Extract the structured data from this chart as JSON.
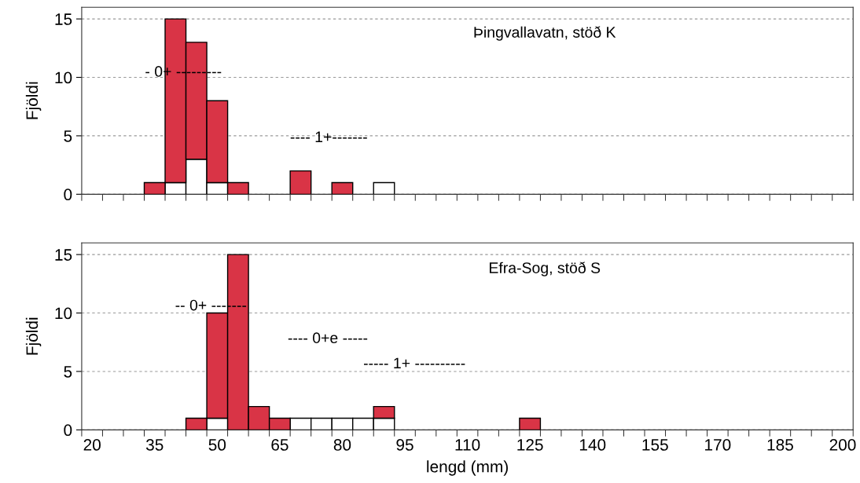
{
  "chart_data": [
    {
      "type": "bar",
      "title": "Þingvallavatn, stöð K",
      "ylabel": "Fjöldi",
      "stacked": true,
      "grid": "y",
      "legend": false,
      "tick_labels": "y",
      "categories": [
        "20",
        null,
        null,
        "35",
        null,
        null,
        "50",
        null,
        null,
        "65",
        null,
        null,
        "80",
        null,
        null,
        "95",
        null,
        null,
        "110",
        null,
        null,
        "125",
        null,
        null,
        "140",
        null,
        null,
        "155",
        null,
        null,
        "170",
        null,
        null,
        "185",
        null,
        null,
        "200"
      ],
      "ylim": [
        0,
        16
      ],
      "yticks": [
        0,
        5,
        10,
        15
      ],
      "series": [
        {
          "color": "#ffffff",
          "values": [
            0,
            0,
            0,
            0,
            1,
            3,
            1,
            0,
            0,
            0,
            0,
            0,
            0,
            0,
            1,
            0,
            0,
            0,
            0,
            0,
            0,
            0,
            0,
            0,
            0,
            0,
            0,
            0,
            0,
            0,
            0,
            0,
            0,
            0,
            0,
            0,
            0
          ]
        },
        {
          "color": "#d93446",
          "values": [
            0,
            0,
            0,
            1,
            14,
            10,
            7,
            1,
            0,
            0,
            2,
            0,
            1,
            0,
            0,
            0,
            0,
            0,
            0,
            0,
            0,
            0,
            0,
            0,
            0,
            0,
            0,
            0,
            0,
            0,
            0,
            0,
            0,
            0,
            0,
            0,
            0
          ]
        }
      ],
      "annotations": [
        "- 0+ ---------",
        "---- 1+-------"
      ]
    },
    {
      "type": "bar",
      "title": "Efra-Sog, stöð S",
      "ylabel": "Fjöldi",
      "xlabel": "lengd (mm)",
      "stacked": true,
      "grid": "y",
      "legend": false,
      "categories": [
        "20",
        null,
        null,
        "35",
        null,
        null,
        "50",
        null,
        null,
        "65",
        null,
        null,
        "80",
        null,
        null,
        "95",
        null,
        null,
        "110",
        null,
        null,
        "125",
        null,
        null,
        "140",
        null,
        null,
        "155",
        null,
        null,
        "170",
        null,
        null,
        "185",
        null,
        null,
        "200"
      ],
      "ylim": [
        0,
        16
      ],
      "yticks": [
        0,
        5,
        10,
        15
      ],
      "series": [
        {
          "color": "#ffffff",
          "values": [
            0,
            0,
            0,
            0,
            0,
            0,
            1,
            0,
            0,
            0,
            1,
            1,
            1,
            1,
            1,
            0,
            0,
            0,
            0,
            0,
            0,
            0,
            0,
            0,
            0,
            0,
            0,
            0,
            0,
            0,
            0,
            0,
            0,
            0,
            0,
            0,
            0
          ]
        },
        {
          "color": "#d93446",
          "values": [
            0,
            0,
            0,
            0,
            0,
            1,
            9,
            15,
            2,
            1,
            0,
            0,
            0,
            0,
            1,
            0,
            0,
            0,
            0,
            0,
            0,
            1,
            0,
            0,
            0,
            0,
            0,
            0,
            0,
            0,
            0,
            0,
            0,
            0,
            0,
            0,
            0
          ]
        }
      ],
      "annotations": [
        "-- 0+ -------",
        "---- 0+e -----",
        "----- 1+ ----------"
      ]
    }
  ]
}
